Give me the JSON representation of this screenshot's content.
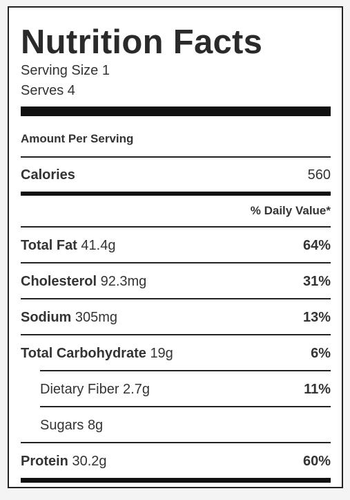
{
  "title": "Nutrition Facts",
  "serving_size": "Serving Size 1",
  "serves": "Serves 4",
  "amount_per_serving": "Amount Per Serving",
  "calories": {
    "label": "Calories",
    "value": "560"
  },
  "daily_value_header": "% Daily Value*",
  "nutrients": [
    {
      "name": "Total Fat",
      "amount": "41.4g",
      "percent": "64%"
    },
    {
      "name": "Cholesterol",
      "amount": "92.3mg",
      "percent": "31%"
    },
    {
      "name": "Sodium",
      "amount": "305mg",
      "percent": "13%"
    },
    {
      "name": "Total Carbohydrate",
      "amount": "19g",
      "percent": "6%"
    },
    {
      "name": "Dietary Fiber",
      "amount": "2.7g",
      "percent": "11%"
    },
    {
      "name": "Sugars",
      "amount": "8g",
      "percent": ""
    },
    {
      "name": "Protein",
      "amount": "30.2g",
      "percent": "60%"
    }
  ]
}
